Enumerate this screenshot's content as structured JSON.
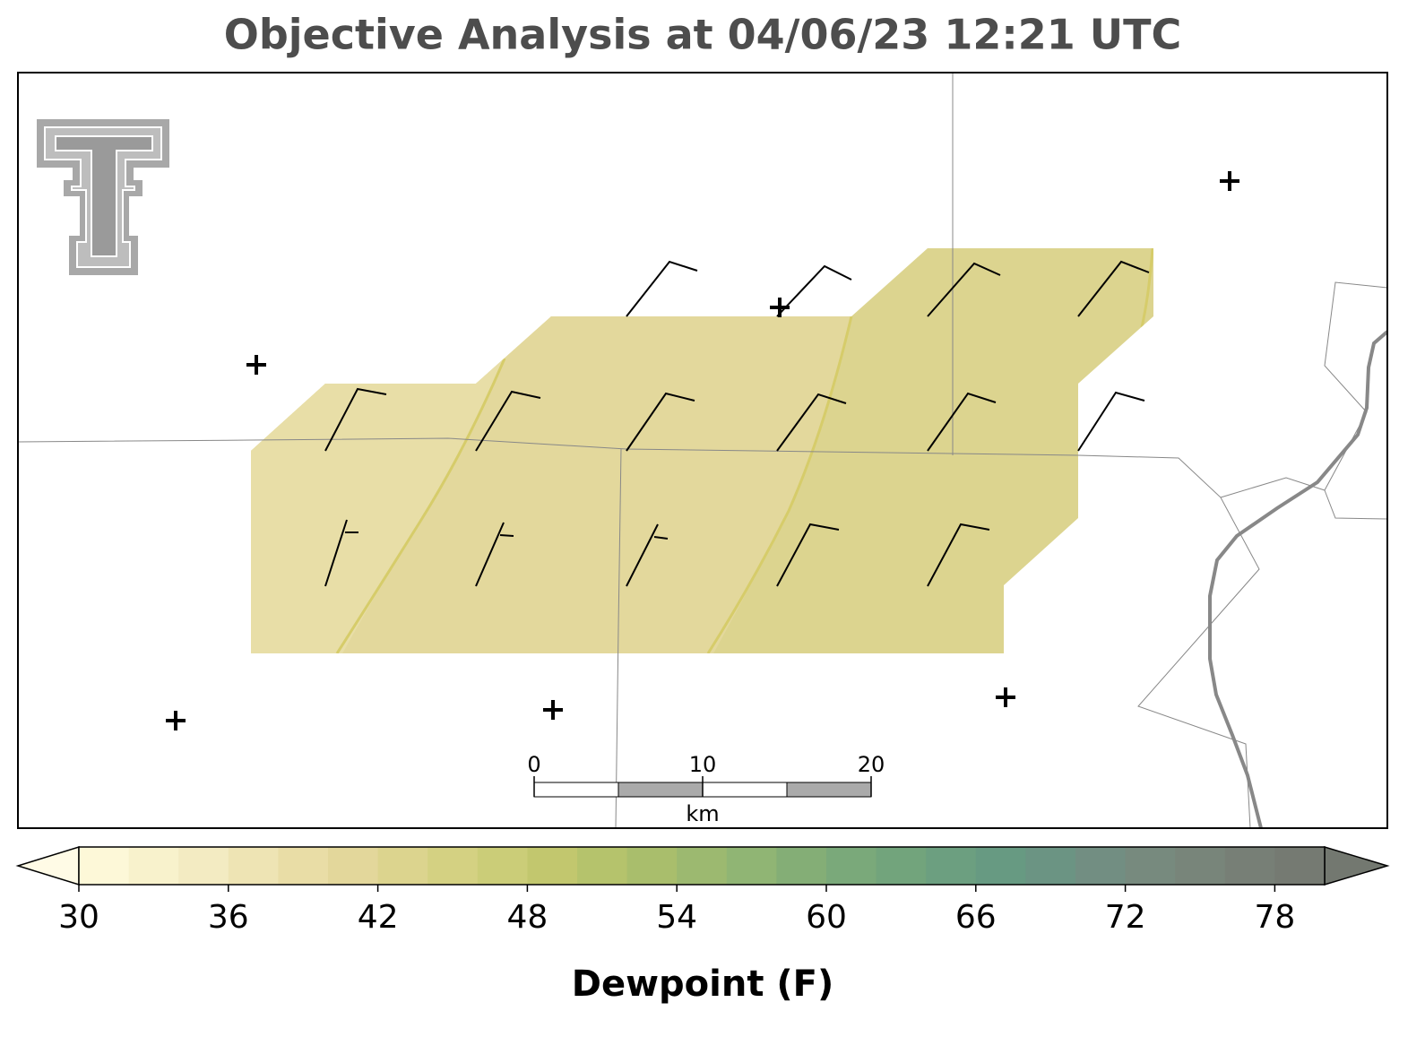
{
  "title": "Objective Analysis at 04/06/23 12:21 UTC",
  "scalebar": {
    "lim": [
      0,
      20
    ],
    "ticks": [
      0,
      10,
      20
    ],
    "unit": "km"
  },
  "colorbar": {
    "label": "Dewpoint (F)",
    "lim": [
      30,
      80
    ],
    "ticks": [
      30,
      36,
      42,
      48,
      54,
      60,
      66,
      72,
      78
    ],
    "under_color": "#fffbe6",
    "over_color": "#737870",
    "colors": [
      "#fdf8d8",
      "#f8f2cc",
      "#f3ebc2",
      "#eee4b4",
      "#e9dda6",
      "#e3d79b",
      "#dcd48e",
      "#d4d182",
      "#cbcd78",
      "#c2c76e",
      "#b5c36c",
      "#a9be6c",
      "#9cb970",
      "#90b574",
      "#84ae76",
      "#7aa97a",
      "#72a47c",
      "#6c9f80",
      "#679a82",
      "#6b9483",
      "#728e82",
      "#778a7e",
      "#78857a",
      "#777f76",
      "#757a72"
    ]
  }
}
